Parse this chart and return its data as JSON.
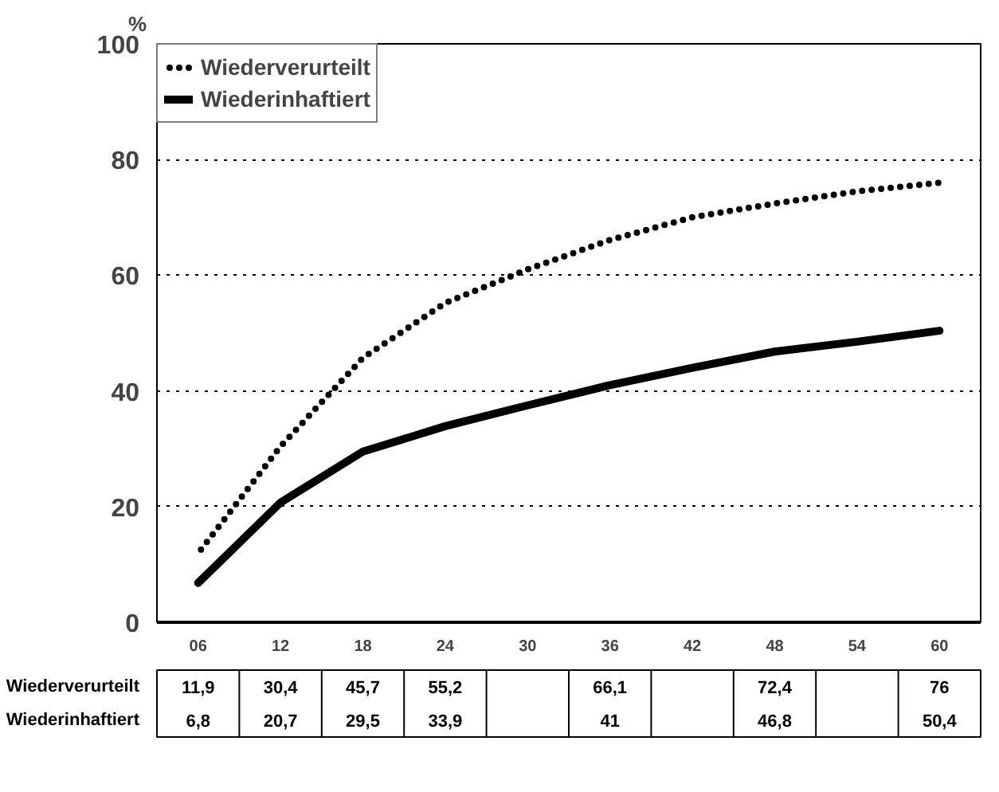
{
  "chart_data": {
    "type": "line",
    "ylabel": "%",
    "categories": [
      "06",
      "12",
      "18",
      "24",
      "30",
      "36",
      "42",
      "48",
      "54",
      "60"
    ],
    "series": [
      {
        "name": "Wiederverurteilt",
        "color": "#000000",
        "line_style": "dotted",
        "values": [
          11.9,
          30.4,
          45.7,
          55.2,
          61,
          66.1,
          70,
          72.4,
          74.5,
          76
        ],
        "value_labels": [
          "11,9",
          "30,4",
          "45,7",
          "55,2",
          null,
          "66,1",
          null,
          "72,4",
          null,
          "76"
        ]
      },
      {
        "name": "Wiederinhaftiert",
        "color": "#000000",
        "line_style": "solid",
        "values": [
          6.8,
          20.7,
          29.5,
          33.9,
          37.5,
          41,
          44,
          46.8,
          48.5,
          50.4
        ],
        "value_labels": [
          "6,8",
          "20,7",
          "29,5",
          "33,9",
          null,
          "41",
          null,
          "46,8",
          null,
          "50,4"
        ]
      }
    ],
    "ylim": [
      0,
      100
    ],
    "yticks": [
      0,
      20,
      40,
      60,
      80,
      100
    ],
    "grid": "y",
    "legend": "top left"
  }
}
